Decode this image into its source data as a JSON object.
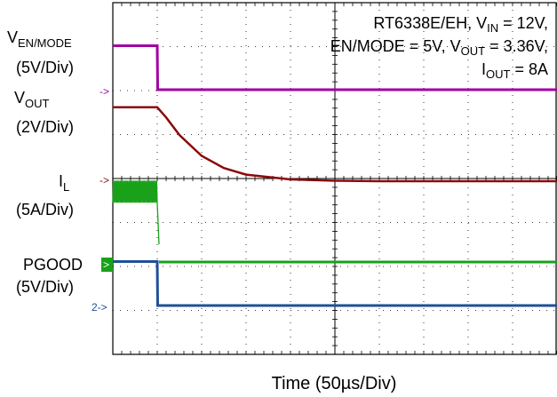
{
  "chart_data": {
    "type": "line",
    "title": "",
    "xlabel": "Time (50µs/Div)",
    "ylabel": "",
    "grid": true,
    "x_divisions": 10,
    "y_divisions": 8,
    "annotation": {
      "line1": {
        "text": "RT6338E/EH,  V",
        "sub": "IN",
        "tail": " = 12V,"
      },
      "line2": {
        "head": "EN/MODE = 5V, V",
        "sub": "OUT",
        "tail": " = 3.36V,"
      },
      "line3": {
        "head": "I",
        "sub": "OUT",
        "tail": " = 8A"
      }
    },
    "channel_labels": {
      "v_en_mode": {
        "main": "V",
        "sub": "EN/MODE",
        "scale": "(5V/Div)"
      },
      "v_out": {
        "main": "V",
        "sub": "OUT",
        "scale": "(2V/Div)"
      },
      "i_l": {
        "main": "I",
        "sub": "L",
        "scale": "(5A/Div)"
      },
      "pgood": {
        "main": "PGOOD",
        "scale": "(5V/Div)"
      }
    },
    "markers": [
      {
        "channel": "v_en_mode",
        "text": "->"
      },
      {
        "channel": "i_l",
        "text": "->"
      },
      {
        "channel": "pgood",
        "text": ">"
      },
      {
        "channel": "pgood_ref",
        "text": "2->"
      }
    ],
    "colors": {
      "v_en_mode": "#a100a1",
      "v_out": "#8b0a0a",
      "i_l": "#1aa11a",
      "pgood": "#1f4f9a",
      "grid": "#000000"
    },
    "series": [
      {
        "name": "V EN/MODE",
        "unit_per_div": "5V/Div",
        "x_us": [
          0,
          50,
          50.5,
          500
        ],
        "y_v": [
          5,
          5,
          0,
          0
        ]
      },
      {
        "name": "V OUT",
        "unit_per_div": "2V/Div",
        "x_us": [
          0,
          50,
          60,
          75,
          100,
          125,
          150,
          200,
          250,
          300,
          500
        ],
        "y_v": [
          3.36,
          3.36,
          2.9,
          2.1,
          1.15,
          0.6,
          0.3,
          0.08,
          0.02,
          0,
          0
        ]
      },
      {
        "name": "I L",
        "unit_per_div": "5A/Div",
        "x_us": [
          0,
          50,
          52,
          53,
          500
        ],
        "y_a": [
          8,
          8,
          2,
          0,
          0
        ],
        "ripple_a": 2.5
      },
      {
        "name": "PGOOD",
        "unit_per_div": "5V/Div",
        "x_us": [
          0,
          50,
          50.5,
          500
        ],
        "y_v": [
          5,
          5,
          0,
          0
        ]
      }
    ]
  }
}
